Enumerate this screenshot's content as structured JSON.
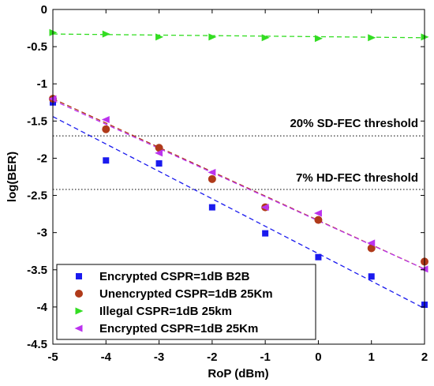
{
  "chart_data": {
    "type": "scatter",
    "xlabel": "RoP (dBm)",
    "ylabel": "log(BER)",
    "xlim": [
      -5,
      2
    ],
    "ylim": [
      -4.5,
      0
    ],
    "xticks": [
      -5,
      -4,
      -3,
      -2,
      -1,
      0,
      1,
      2
    ],
    "xtick_labels": [
      "-5",
      "-4",
      "-3",
      "-2",
      "-1",
      "0",
      "1",
      "2"
    ],
    "yticks": [
      -4.5,
      -4,
      -3.5,
      -3,
      -2.5,
      -2,
      -1.5,
      -1,
      -0.5,
      0
    ],
    "ytick_labels": [
      "-4.5",
      "-4",
      "-3.5",
      "-3",
      "-2.5",
      "-2",
      "-1.5",
      "-1",
      "-0.5",
      "0"
    ],
    "grid": false,
    "legend_position": "bottom-left",
    "thresholds": [
      {
        "label": "20% SD-FEC threshold",
        "y": -1.7
      },
      {
        "label": "7% HD-FEC threshold",
        "y": -2.42
      }
    ],
    "series": [
      {
        "name": "Encrypted CSPR=1dB B2B",
        "marker": "square",
        "color": "#1a1aee",
        "x": [
          -5,
          -4,
          -3,
          -2,
          -1,
          0,
          1,
          2
        ],
        "y": [
          -1.25,
          -2.03,
          -2.07,
          -2.66,
          -3.01,
          -3.33,
          -3.59,
          -3.97
        ],
        "fit": [
          [
            -5,
            -1.44
          ],
          [
            2,
            -4.02
          ]
        ]
      },
      {
        "name": "Unencrypted CSPR=1dB 25Km",
        "marker": "circle",
        "color": "#b03a1a",
        "x": [
          -5,
          -4,
          -3,
          -2,
          -1,
          0,
          1,
          2
        ],
        "y": [
          -1.2,
          -1.61,
          -1.86,
          -2.28,
          -2.66,
          -2.83,
          -3.21,
          -3.39
        ],
        "fit": [
          [
            -5,
            -1.2
          ],
          [
            2,
            -3.49
          ]
        ]
      },
      {
        "name": "Illegal CSPR=1dB 25km",
        "marker": "triangle-right",
        "color": "#33dd22",
        "x": [
          -5,
          -4,
          -3,
          -2,
          -1,
          0,
          1,
          2
        ],
        "y": [
          -0.31,
          -0.33,
          -0.37,
          -0.37,
          -0.38,
          -0.39,
          -0.38,
          -0.37
        ],
        "fit": [
          [
            -5,
            -0.33
          ],
          [
            2,
            -0.38
          ]
        ]
      },
      {
        "name": "Encrypted CSPR=1dB 25Km",
        "marker": "triangle-left",
        "color": "#bb33ee",
        "x": [
          -5,
          -4,
          -3,
          -2,
          -1,
          0,
          1,
          2
        ],
        "y": [
          -1.2,
          -1.48,
          -1.93,
          -2.19,
          -2.66,
          -2.74,
          -3.14,
          -3.49
        ],
        "fit": [
          [
            -5,
            -1.22
          ],
          [
            2,
            -3.49
          ]
        ]
      }
    ]
  }
}
